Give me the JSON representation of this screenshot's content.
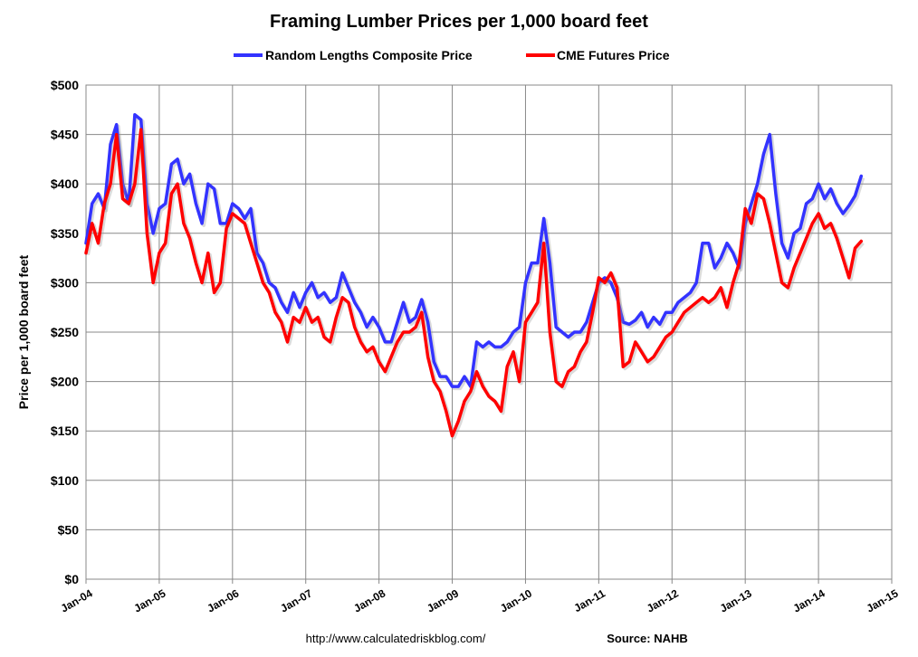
{
  "chart_data": {
    "type": "line",
    "title": "Framing Lumber Prices per 1,000 board feet",
    "ylabel": "Price per 1,000 board feet",
    "xlabel": "",
    "ylim": [
      0,
      500
    ],
    "xlim": [
      "2004-01",
      "2015-01"
    ],
    "grid": true,
    "legend_position": "top",
    "y_ticks": [
      "$0",
      "$50",
      "$100",
      "$150",
      "$200",
      "$250",
      "$300",
      "$350",
      "$400",
      "$450",
      "$500"
    ],
    "x_ticks": [
      "Jan-04",
      "Jan-05",
      "Jan-06",
      "Jan-07",
      "Jan-08",
      "Jan-09",
      "Jan-10",
      "Jan-11",
      "Jan-12",
      "Jan-13",
      "Jan-14",
      "Jan-15"
    ],
    "start": "2004-01",
    "frequency": "monthly",
    "series": [
      {
        "name": "Random Lengths Composite Price",
        "color": "#3333ff",
        "values": [
          340,
          380,
          390,
          375,
          440,
          460,
          400,
          380,
          470,
          465,
          380,
          350,
          375,
          380,
          420,
          425,
          400,
          410,
          380,
          360,
          400,
          395,
          360,
          360,
          380,
          375,
          365,
          375,
          330,
          320,
          300,
          295,
          280,
          270,
          290,
          275,
          290,
          300,
          285,
          290,
          280,
          285,
          310,
          295,
          280,
          270,
          255,
          265,
          255,
          240,
          240,
          260,
          280,
          260,
          265,
          283,
          260,
          220,
          205,
          205,
          195,
          195,
          205,
          195,
          240,
          235,
          240,
          235,
          235,
          240,
          250,
          255,
          300,
          320,
          320,
          365,
          320,
          255,
          250,
          245,
          250,
          250,
          260,
          280,
          300,
          305,
          300,
          285,
          260,
          258,
          262,
          270,
          255,
          265,
          258,
          270,
          270,
          280,
          285,
          290,
          300,
          340,
          340,
          315,
          325,
          340,
          330,
          315,
          360,
          380,
          400,
          430,
          450,
          390,
          340,
          325,
          350,
          355,
          380,
          385,
          400,
          385,
          395,
          380,
          370,
          378,
          388,
          408
        ]
      },
      {
        "name": "CME Futures Price",
        "color": "#ff0000",
        "values": [
          330,
          360,
          340,
          380,
          400,
          450,
          385,
          380,
          400,
          455,
          350,
          300,
          330,
          340,
          390,
          400,
          360,
          345,
          320,
          300,
          330,
          290,
          300,
          355,
          370,
          365,
          360,
          340,
          320,
          300,
          290,
          270,
          260,
          240,
          265,
          260,
          275,
          260,
          265,
          245,
          240,
          265,
          285,
          280,
          255,
          240,
          230,
          235,
          220,
          210,
          225,
          240,
          250,
          250,
          255,
          270,
          225,
          200,
          190,
          170,
          145,
          160,
          180,
          190,
          210,
          195,
          185,
          180,
          170,
          215,
          230,
          200,
          260,
          270,
          280,
          340,
          250,
          200,
          195,
          210,
          215,
          230,
          240,
          270,
          305,
          300,
          310,
          295,
          215,
          220,
          240,
          230,
          220,
          225,
          235,
          245,
          250,
          260,
          270,
          275,
          280,
          285,
          280,
          285,
          295,
          275,
          300,
          320,
          375,
          360,
          390,
          385,
          360,
          330,
          300,
          295,
          315,
          330,
          345,
          360,
          370,
          355,
          360,
          345,
          325,
          305,
          335,
          342
        ]
      }
    ]
  },
  "footer": {
    "url": "http://www.calculatedriskblog.com/",
    "source": "Source: NAHB"
  }
}
